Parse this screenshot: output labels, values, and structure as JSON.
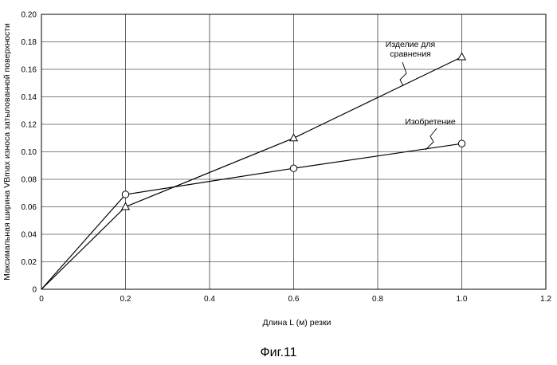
{
  "chart_data": {
    "type": "line",
    "caption": "Фиг.11",
    "xlabel": "Длина L (м) резки",
    "ylabel": "Максимальная ширина VBmax износа затылованной поверхности",
    "xlim": [
      0,
      1.2
    ],
    "ylim": [
      0,
      0.2
    ],
    "xticks": [
      0,
      0.2,
      0.4,
      0.6,
      0.8,
      1.0,
      1.2
    ],
    "xtick_labels": [
      "0",
      "0.2",
      "0.4",
      "0.6",
      "0.8",
      "1.0",
      "1.2"
    ],
    "yticks": [
      0,
      0.02,
      0.04,
      0.06,
      0.08,
      0.1,
      0.12,
      0.14,
      0.16,
      0.18,
      0.2
    ],
    "ytick_labels": [
      "0",
      "0.02",
      "0.04",
      "0.06",
      "0.08",
      "0.10",
      "0.12",
      "0.14",
      "0.16",
      "0.18",
      "0.20"
    ],
    "grid": true,
    "series": [
      {
        "name": "Изделие для сравнения",
        "label_lines": [
          "Изделие для",
          "сравнения"
        ],
        "marker": "triangle",
        "x": [
          0,
          0.2,
          0.6,
          1.0
        ],
        "y": [
          0,
          0.06,
          0.11,
          0.169
        ]
      },
      {
        "name": "Изобретение",
        "label_lines": [
          "Изобретение"
        ],
        "marker": "circle",
        "x": [
          0,
          0.2,
          0.6,
          1.0
        ],
        "y": [
          0,
          0.069,
          0.088,
          0.106
        ]
      }
    ]
  }
}
